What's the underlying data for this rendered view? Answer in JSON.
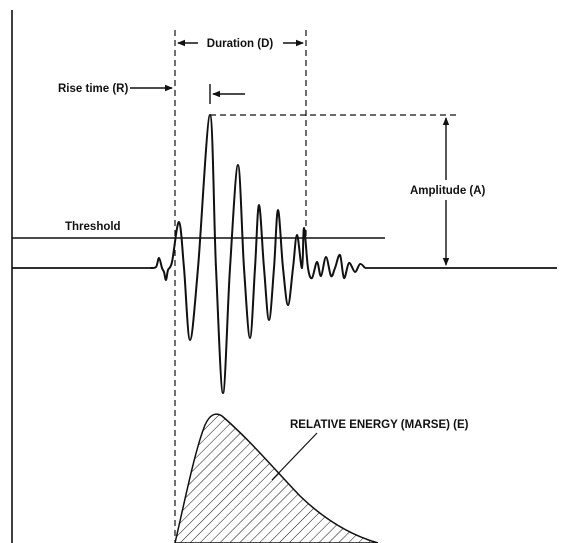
{
  "labels": {
    "duration": "Duration (D)",
    "rise_time": "Rise time (R)",
    "amplitude": "Amplitude (A)",
    "threshold": "Threshold",
    "energy": "RELATIVE ENERGY (MARSE) (E)"
  },
  "colors": {
    "ink": "#111111",
    "background": "#ffffff"
  }
}
